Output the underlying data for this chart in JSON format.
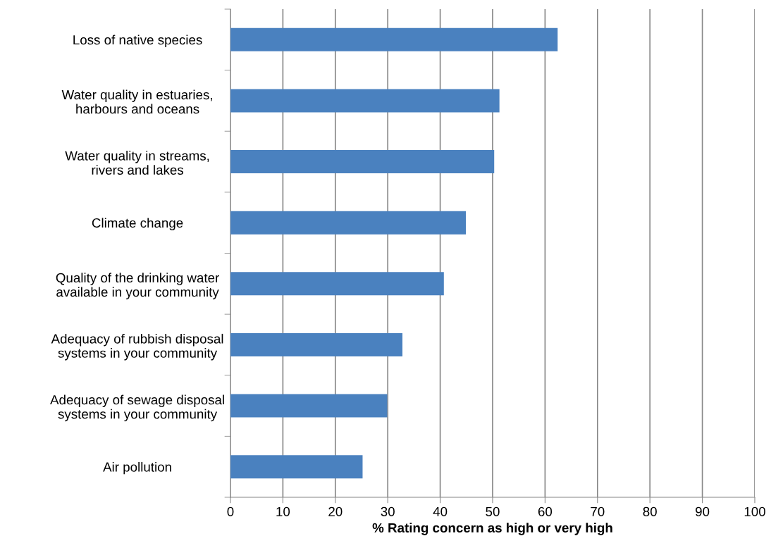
{
  "chart_data": {
    "type": "bar",
    "orientation": "horizontal",
    "xlabel": "% Rating concern as high or very high",
    "categories": [
      "Loss of native species",
      "Water quality in estuaries,\nharbours and oceans",
      "Water quality in streams,\nrivers and lakes",
      "Climate change",
      "Quality of the drinking water\navailable in your community",
      "Adequacy of rubbish disposal\nsystems in your community",
      "Adequacy of sewage disposal\nsystems in your community",
      "Air pollution"
    ],
    "values": [
      62.4,
      51.3,
      50.3,
      44.9,
      40.7,
      32.8,
      29.9,
      25.2
    ],
    "color": "#4a81bf",
    "xlim": [
      0,
      100
    ],
    "xticks": [
      0,
      10,
      20,
      30,
      40,
      50,
      60,
      70,
      80,
      90,
      100
    ],
    "grid": "x",
    "legend": false
  }
}
